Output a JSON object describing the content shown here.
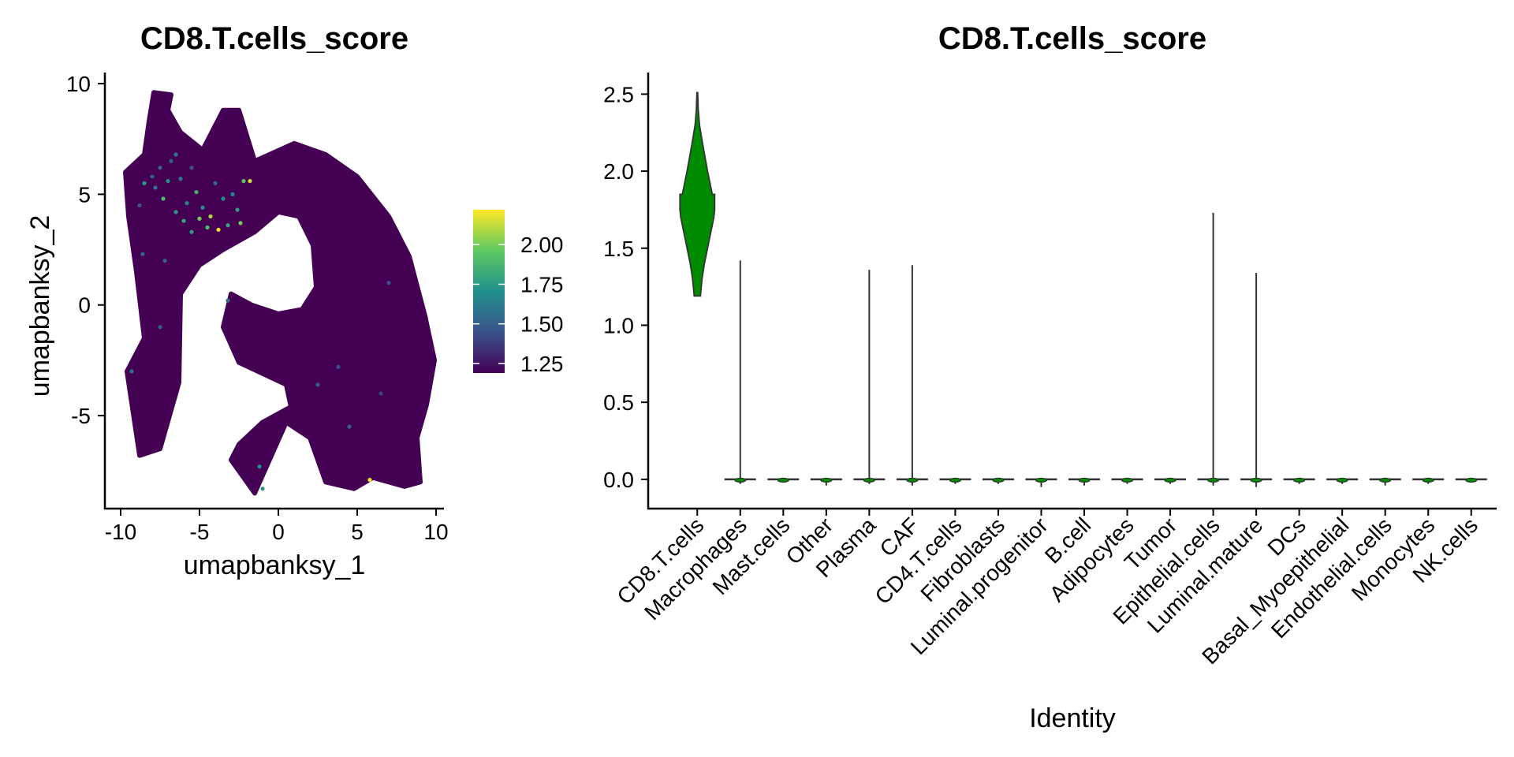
{
  "chart_data": [
    {
      "type": "scatter",
      "title": "CD8.T.cells_score",
      "xlabel": "umapbanksy_1",
      "ylabel": "umapbanksy_2",
      "xlim": [
        -11,
        10.5
      ],
      "ylim": [
        -9.2,
        10.5
      ],
      "xticks": [
        "-10",
        "-5",
        "0",
        "5",
        "10"
      ],
      "xtick_values": [
        -10,
        -5,
        0,
        5,
        10
      ],
      "yticks": [
        "-5",
        "0",
        "5",
        "10"
      ],
      "ytick_values": [
        -5,
        0,
        5,
        10
      ],
      "background_color": "#440154",
      "colorbar": {
        "colormap": "viridis",
        "range": [
          1.19,
          2.22
        ],
        "ticks": [
          "1.25",
          "1.50",
          "1.75",
          "2.00"
        ],
        "tick_values": [
          1.25,
          1.5,
          1.75,
          2.0
        ]
      },
      "outline": [
        [
          -7.9,
          9.6
        ],
        [
          -6.8,
          9.5
        ],
        [
          -7.0,
          8.8
        ],
        [
          -6.2,
          7.8
        ],
        [
          -4.8,
          7.0
        ],
        [
          -3.5,
          8.8
        ],
        [
          -2.5,
          8.8
        ],
        [
          -1.5,
          6.5
        ],
        [
          1.0,
          7.3
        ],
        [
          3.0,
          6.8
        ],
        [
          5.0,
          5.8
        ],
        [
          7.0,
          4.0
        ],
        [
          8.3,
          2.2
        ],
        [
          9.3,
          -0.5
        ],
        [
          9.9,
          -2.5
        ],
        [
          9.4,
          -4.5
        ],
        [
          8.8,
          -6.0
        ],
        [
          9.0,
          -8.0
        ],
        [
          8.0,
          -8.2
        ],
        [
          6.0,
          -7.8
        ],
        [
          4.8,
          -8.3
        ],
        [
          3.0,
          -8.0
        ],
        [
          2.0,
          -6.0
        ],
        [
          0.5,
          -5.3
        ],
        [
          -1.5,
          -8.5
        ],
        [
          -3.0,
          -7.0
        ],
        [
          -2.5,
          -6.3
        ],
        [
          -1.0,
          -5.3
        ],
        [
          0.8,
          -4.6
        ],
        [
          0.5,
          -3.6
        ],
        [
          -2.5,
          -2.6
        ],
        [
          -3.5,
          -1.0
        ],
        [
          -3.0,
          0.5
        ],
        [
          -1.7,
          0.0
        ],
        [
          0.0,
          -0.4
        ],
        [
          1.5,
          -0.2
        ],
        [
          2.4,
          0.8
        ],
        [
          2.2,
          2.7
        ],
        [
          1.3,
          4.0
        ],
        [
          0.0,
          4.2
        ],
        [
          -1.5,
          3.3
        ],
        [
          -3.5,
          2.5
        ],
        [
          -5.0,
          1.8
        ],
        [
          -6.2,
          0.5
        ],
        [
          -6.3,
          -3.5
        ],
        [
          -7.5,
          -6.5
        ],
        [
          -8.8,
          -6.8
        ],
        [
          -9.6,
          -3.0
        ],
        [
          -8.5,
          -1.5
        ],
        [
          -9.0,
          1.5
        ],
        [
          -9.5,
          4.0
        ],
        [
          -9.7,
          6.0
        ],
        [
          -8.5,
          6.8
        ],
        [
          -8.2,
          8.3
        ]
      ],
      "points": [
        {
          "x": -8.5,
          "y": 5.5,
          "v": 1.75
        },
        {
          "x": -8.0,
          "y": 5.8,
          "v": 1.5
        },
        {
          "x": -7.8,
          "y": 5.3,
          "v": 1.6
        },
        {
          "x": -7.5,
          "y": 6.2,
          "v": 1.55
        },
        {
          "x": -7.3,
          "y": 4.8,
          "v": 1.9
        },
        {
          "x": -7.0,
          "y": 5.6,
          "v": 1.7
        },
        {
          "x": -6.8,
          "y": 6.5,
          "v": 1.5
        },
        {
          "x": -6.5,
          "y": 4.2,
          "v": 1.75
        },
        {
          "x": -6.2,
          "y": 5.7,
          "v": 1.6
        },
        {
          "x": -6.0,
          "y": 3.8,
          "v": 1.8
        },
        {
          "x": -5.8,
          "y": 4.6,
          "v": 1.65
        },
        {
          "x": -5.5,
          "y": 3.3,
          "v": 1.75
        },
        {
          "x": -5.2,
          "y": 5.1,
          "v": 1.85
        },
        {
          "x": -5.0,
          "y": 3.9,
          "v": 2.0
        },
        {
          "x": -4.8,
          "y": 4.4,
          "v": 1.7
        },
        {
          "x": -4.5,
          "y": 3.5,
          "v": 1.9
        },
        {
          "x": -4.3,
          "y": 4.0,
          "v": 2.1
        },
        {
          "x": -4.0,
          "y": 5.5,
          "v": 1.55
        },
        {
          "x": -3.8,
          "y": 3.4,
          "v": 2.2
        },
        {
          "x": -3.5,
          "y": 4.8,
          "v": 1.7
        },
        {
          "x": -3.2,
          "y": 3.6,
          "v": 1.8
        },
        {
          "x": -2.9,
          "y": 5.0,
          "v": 1.65
        },
        {
          "x": -2.6,
          "y": 4.3,
          "v": 1.75
        },
        {
          "x": -2.4,
          "y": 3.7,
          "v": 2.0
        },
        {
          "x": -2.2,
          "y": 5.6,
          "v": 1.95
        },
        {
          "x": -1.8,
          "y": 5.6,
          "v": 2.15
        },
        {
          "x": -8.8,
          "y": 4.5,
          "v": 1.45
        },
        {
          "x": -8.6,
          "y": 2.3,
          "v": 1.55
        },
        {
          "x": -7.2,
          "y": 2.0,
          "v": 1.5
        },
        {
          "x": -6.5,
          "y": 6.8,
          "v": 1.6
        },
        {
          "x": -5.5,
          "y": 6.2,
          "v": 1.45
        },
        {
          "x": -9.3,
          "y": -3.0,
          "v": 1.6
        },
        {
          "x": -7.5,
          "y": -1.0,
          "v": 1.5
        },
        {
          "x": -3.2,
          "y": 0.2,
          "v": 1.55
        },
        {
          "x": -1.2,
          "y": -7.3,
          "v": 1.7
        },
        {
          "x": -1.0,
          "y": -8.3,
          "v": 1.75
        },
        {
          "x": 2.5,
          "y": -3.6,
          "v": 1.5
        },
        {
          "x": 3.8,
          "y": -2.8,
          "v": 1.45
        },
        {
          "x": 5.8,
          "y": -7.9,
          "v": 2.2
        },
        {
          "x": 6.5,
          "y": -4.0,
          "v": 1.4
        },
        {
          "x": 4.5,
          "y": -5.5,
          "v": 1.5
        },
        {
          "x": 7.0,
          "y": 1.0,
          "v": 1.45
        }
      ]
    },
    {
      "type": "violin",
      "title": "CD8.T.cells_score",
      "xlabel": "Identity",
      "ylabel": "",
      "ylim": [
        -0.19,
        2.64
      ],
      "yticks": [
        "0.0",
        "0.5",
        "1.0",
        "1.5",
        "2.0",
        "2.5"
      ],
      "ytick_values": [
        0,
        0.5,
        1.0,
        1.5,
        2.0,
        2.5
      ],
      "categories": [
        "CD8.T.cells",
        "Macrophages",
        "Mast.cells",
        "Other",
        "Plasma",
        "CAF",
        "CD4.T.cells",
        "Fibroblasts",
        "Luminal.progenitor",
        "B.cell",
        "Adipocytes",
        "Tumor",
        "Epithelial.cells",
        "Luminal.mature",
        "DCs",
        "Basal_Myoepithelial",
        "Endothelial.cells",
        "Monocytes",
        "NK.cells"
      ],
      "fill_color": "#008B00",
      "series": [
        {
          "min": 1.19,
          "max": 2.51,
          "q1": 1.5,
          "median": 1.7,
          "q3": 1.85
        },
        {
          "min": -0.03,
          "max": 1.42,
          "q1": 0,
          "median": 0,
          "q3": 0
        },
        {
          "min": -0.02,
          "max": 0.0,
          "q1": 0,
          "median": 0,
          "q3": 0
        },
        {
          "min": -0.04,
          "max": 0.0,
          "q1": 0,
          "median": 0,
          "q3": 0
        },
        {
          "min": -0.03,
          "max": 1.36,
          "q1": 0,
          "median": 0,
          "q3": 0
        },
        {
          "min": -0.04,
          "max": 1.39,
          "q1": 0,
          "median": 0,
          "q3": 0
        },
        {
          "min": -0.03,
          "max": 0.0,
          "q1": 0,
          "median": 0,
          "q3": 0
        },
        {
          "min": -0.03,
          "max": 0.0,
          "q1": 0,
          "median": 0,
          "q3": 0
        },
        {
          "min": -0.05,
          "max": 0.0,
          "q1": 0,
          "median": 0,
          "q3": 0
        },
        {
          "min": -0.04,
          "max": 0.0,
          "q1": 0,
          "median": 0,
          "q3": 0
        },
        {
          "min": -0.03,
          "max": 0.0,
          "q1": 0,
          "median": 0,
          "q3": 0
        },
        {
          "min": -0.03,
          "max": 0.0,
          "q1": 0,
          "median": 0,
          "q3": 0
        },
        {
          "min": -0.04,
          "max": 1.73,
          "q1": 0,
          "median": 0,
          "q3": 0
        },
        {
          "min": -0.05,
          "max": 1.34,
          "q1": 0,
          "median": 0,
          "q3": 0
        },
        {
          "min": -0.03,
          "max": 0.0,
          "q1": 0,
          "median": 0,
          "q3": 0
        },
        {
          "min": -0.03,
          "max": 0.0,
          "q1": 0,
          "median": 0,
          "q3": 0
        },
        {
          "min": -0.04,
          "max": 0.0,
          "q1": 0,
          "median": 0,
          "q3": 0
        },
        {
          "min": -0.03,
          "max": 0.0,
          "q1": 0,
          "median": 0,
          "q3": 0
        },
        {
          "min": -0.02,
          "max": 0.0,
          "q1": 0,
          "median": 0,
          "q3": 0
        }
      ]
    }
  ]
}
